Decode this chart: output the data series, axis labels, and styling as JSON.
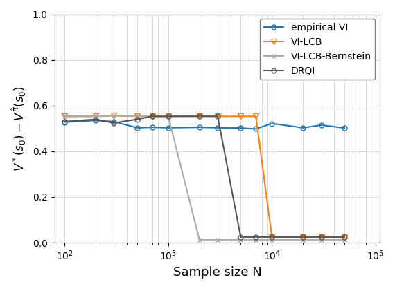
{
  "title": "",
  "xlabel": "Sample size N",
  "ylabel": "V*(s0) - V_pi(s0)",
  "ylim": [
    0.0,
    1.0
  ],
  "series": {
    "empirical_VI": {
      "label": "empirical VI",
      "color": "#1f77b4",
      "marker": "o",
      "marker_size": 5,
      "linewidth": 1.5,
      "x": [
        100,
        200,
        300,
        500,
        700,
        1000,
        2000,
        3000,
        5000,
        7000,
        10000,
        20000,
        30000,
        50000
      ],
      "y": [
        0.528,
        0.535,
        0.53,
        0.503,
        0.505,
        0.503,
        0.505,
        0.503,
        0.502,
        0.498,
        0.522,
        0.503,
        0.515,
        0.502
      ]
    },
    "VI_LCB": {
      "label": "VI-LCB",
      "color": "#ff7f0e",
      "marker": "v",
      "marker_size": 6,
      "linewidth": 1.5,
      "x": [
        100,
        200,
        300,
        500,
        700,
        1000,
        2000,
        3000,
        5000,
        7000,
        10000,
        20000,
        30000,
        50000
      ],
      "y": [
        0.553,
        0.553,
        0.556,
        0.553,
        0.553,
        0.553,
        0.555,
        0.553,
        0.553,
        0.553,
        0.025,
        0.025,
        0.025,
        0.025
      ]
    },
    "VI_LCB_Bernstein": {
      "label": "VI-LCB-Bernstein",
      "color": "#aaaaaa",
      "marker": "x",
      "marker_size": 5,
      "linewidth": 1.5,
      "x": [
        100,
        200,
        300,
        500,
        700,
        1000,
        2000,
        3000,
        5000,
        7000,
        10000,
        20000,
        30000,
        50000
      ],
      "y": [
        0.553,
        0.553,
        0.556,
        0.553,
        0.553,
        0.553,
        0.013,
        0.013,
        0.013,
        0.013,
        0.013,
        0.013,
        0.013,
        0.013
      ]
    },
    "DRQI": {
      "label": "DRQI",
      "color": "#555555",
      "marker": "o",
      "marker_size": 5,
      "linewidth": 1.5,
      "x": [
        100,
        200,
        300,
        500,
        700,
        1000,
        2000,
        3000,
        5000,
        7000,
        10000,
        20000,
        30000,
        50000
      ],
      "y": [
        0.53,
        0.54,
        0.524,
        0.54,
        0.553,
        0.553,
        0.553,
        0.553,
        0.025,
        0.025,
        0.025,
        0.025,
        0.025,
        0.025
      ]
    }
  }
}
